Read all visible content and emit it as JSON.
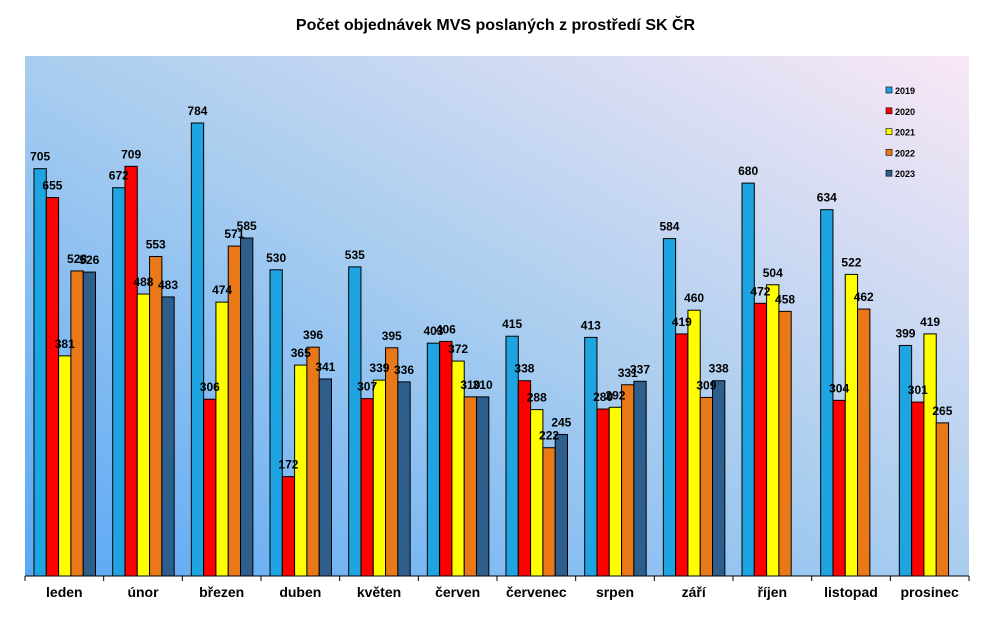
{
  "chart_data": {
    "type": "bar",
    "title": "Počet objednávek MVS poslaných z prostředí SK ČR",
    "xlabel": "",
    "ylabel": "",
    "ylim": [
      0,
      900
    ],
    "grid": false,
    "legend_position": "top-right",
    "categories": [
      "leden",
      "únor",
      "březen",
      "duben",
      "květen",
      "červen",
      "červenec",
      "srpen",
      "září",
      "říjen",
      "listopad",
      "prosinec"
    ],
    "series": [
      {
        "name": "2019",
        "color": "#1ea4e0",
        "values": [
          705,
          672,
          784,
          530,
          535,
          403,
          415,
          413,
          584,
          680,
          634,
          399
        ]
      },
      {
        "name": "2020",
        "color": "#ff0000",
        "values": [
          655,
          709,
          306,
          172,
          307,
          406,
          338,
          289,
          419,
          472,
          304,
          301
        ]
      },
      {
        "name": "2021",
        "color": "#ffff00",
        "values": [
          381,
          488,
          474,
          365,
          339,
          372,
          288,
          292,
          460,
          504,
          522,
          419
        ]
      },
      {
        "name": "2022",
        "color": "#e87818",
        "values": [
          528,
          553,
          571,
          396,
          395,
          310,
          222,
          331,
          309,
          458,
          462,
          265
        ]
      },
      {
        "name": "2023",
        "color": "#2e5f8c",
        "values": [
          526,
          483,
          585,
          341,
          336,
          310,
          245,
          337,
          338,
          null,
          null,
          null
        ]
      }
    ]
  }
}
